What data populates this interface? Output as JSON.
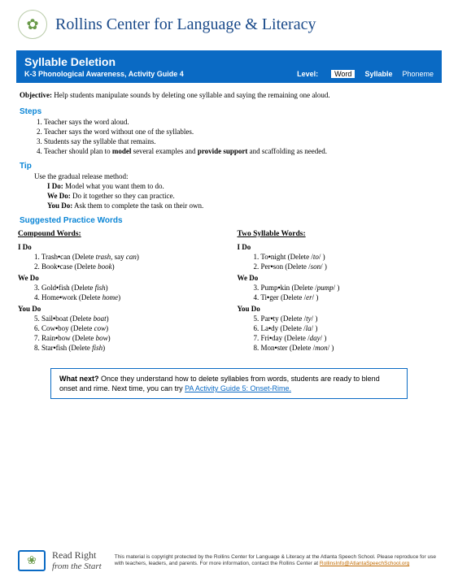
{
  "header": {
    "org": "Rollins Center for Language & Literacy"
  },
  "bluebar": {
    "title": "Syllable Deletion",
    "subtitle": "K-3 Phonological Awareness, Activity Guide 4",
    "level_label": "Level:",
    "levels": {
      "word": "Word",
      "syllable": "Syllable",
      "phoneme": "Phoneme"
    }
  },
  "objective": {
    "label": "Objective:",
    "text": "Help students manipulate sounds by deleting one syllable and saying the remaining one aloud."
  },
  "steps": {
    "heading": "Steps",
    "items": [
      "Teacher says the word aloud.",
      "Teacher says the word without one of the syllables.",
      "Students say the syllable that remains."
    ],
    "item4_pre": "Teacher should plan to ",
    "item4_b1": "model",
    "item4_mid": " several examples and ",
    "item4_b2": "provide support",
    "item4_post": " and scaffolding as needed."
  },
  "tip": {
    "heading": "Tip",
    "intro": "Use the gradual release method:",
    "ido_l": "I Do:",
    "ido_t": " Model what you want them to do.",
    "wedo_l": "We Do:",
    "wedo_t": " Do it together so they can practice.",
    "youdo_l": "You Do:",
    "youdo_t": " Ask them to complete the task on their own."
  },
  "practice": {
    "heading": "Suggested Practice Words",
    "col1": {
      "title": "Compound Words:",
      "ido": "I Do",
      "w1_n": "1. Trash",
      "w1_s": "can",
      "w1_p": " (Delete ",
      "w1_i1": "trash",
      "w1_m": ", say ",
      "w1_i2": "can",
      "w1_e": ")",
      "w2_n": "2. Book",
      "w2_s": "case",
      "w2_p": " (Delete ",
      "w2_i": "book",
      "w2_e": ")",
      "wedo": "We Do",
      "w3_n": "3. Gold",
      "w3_s": "fish",
      "w3_p": " (Delete ",
      "w3_i": "fish",
      "w3_e": ")",
      "w4_n": "4. Home",
      "w4_s": "work",
      "w4_p": " (Delete ",
      "w4_i": "home",
      "w4_e": ")",
      "youdo": "You Do",
      "w5_n": "5. Sail",
      "w5_s": "boat",
      "w5_p": " (Delete ",
      "w5_i": "boat",
      "w5_e": ")",
      "w6_n": "6. Cow",
      "w6_s": "boy",
      "w6_p": " (Delete ",
      "w6_i": "cow",
      "w6_e": ")",
      "w7_n": "7. Rain",
      "w7_s": "bow",
      "w7_p": " (Delete ",
      "w7_i": "bow",
      "w7_e": ")",
      "w8_n": "8. Star",
      "w8_s": "fish",
      "w8_p": " (Delete ",
      "w8_i": "fish",
      "w8_e": ")"
    },
    "col2": {
      "title": "Two Syllable Words:",
      "ido": "I Do",
      "w1_n": "1. To",
      "w1_s": "night",
      "w1_p": " (Delete /",
      "w1_i": "to",
      "w1_e": "/ )",
      "w2_n": "2. Per",
      "w2_s": "son",
      "w2_p": " (Delete /",
      "w2_i": "son",
      "w2_e": "/ )",
      "wedo": "We Do",
      "w3_n": "3. Pump",
      "w3_s": "kin",
      "w3_p": " (Delete /",
      "w3_i": "pump",
      "w3_e": "/ )",
      "w4_n": "4. Ti",
      "w4_s": "ger",
      "w4_p": " (Delete /",
      "w4_i": "er",
      "w4_e": "/ )",
      "youdo": "You Do",
      "w5_n": "5. Par",
      "w5_s": "ty",
      "w5_p": " (Delete /",
      "w5_i": "ty",
      "w5_e": "/ )",
      "w6_n": "6. La",
      "w6_s": "dy",
      "w6_p": " (Delete /",
      "w6_i": "la",
      "w6_e": "/ )",
      "w7_n": "7. Fri",
      "w7_s": "day",
      "w7_p": " (Delete /",
      "w7_i": "day",
      "w7_e": "/ )",
      "w8_n": "8. Mon",
      "w8_s": "ster",
      "w8_p": " (Delete /",
      "w8_i": "mon",
      "w8_e": "/ )"
    }
  },
  "nextbox": {
    "lead": "What next?",
    "text": " Once they understand how to delete syllables from words, students are ready to blend onset and rime. Next time, you can try ",
    "link": "PA Activity Guide 5: Onset-Rime."
  },
  "footer": {
    "brand1": "Read Right",
    "brand2": "from the Start",
    "copy": "This material is copyright protected by the Rollins Center for Language & Literacy at the Atlanta Speech School. Please reproduce for use with teachers, leaders, and parents. For more information, contact the Rollins Center at ",
    "email": "RollinsInfo@AtlantaSpeechSchool.org"
  },
  "dot": "•"
}
